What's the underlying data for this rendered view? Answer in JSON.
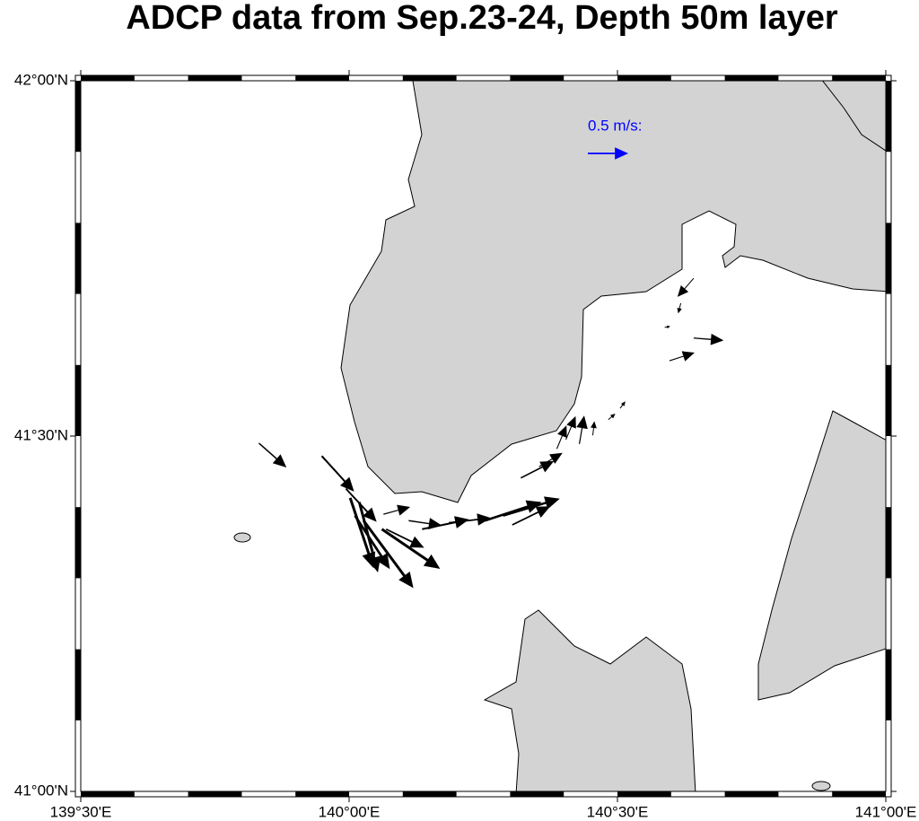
{
  "map": {
    "title": "ADCP data from Sep.23-24, Depth 50m layer",
    "xlim": [
      139.5,
      141
    ],
    "ylim": [
      41,
      42
    ],
    "xticks": [
      {
        "value": 139.5,
        "label": "139°30'E"
      },
      {
        "value": 140,
        "label": "140°00'E"
      },
      {
        "value": 140.5,
        "label": "140°30'E"
      },
      {
        "value": 141,
        "label": "141°00'E"
      }
    ],
    "yticks": [
      {
        "value": 41,
        "label": "41°00'N"
      },
      {
        "value": 41.5,
        "label": "41°30'N"
      },
      {
        "value": 42,
        "label": "42°00'N"
      }
    ],
    "legend": {
      "label": "0.5 m/s:",
      "speed": 0.5,
      "color": "#0000ff"
    },
    "vector_color": "#000000",
    "vectors": [
      {
        "lon": 139.832,
        "lat": 41.49,
        "u": 0.34,
        "v": -0.3
      },
      {
        "lon": 139.949,
        "lat": 41.472,
        "u": 0.4,
        "v": -0.44
      },
      {
        "lon": 139.994,
        "lat": 41.426,
        "u": 0.38,
        "v": -0.41
      },
      {
        "lon": 140.002,
        "lat": 41.413,
        "u": 0.29,
        "v": -0.87
      },
      {
        "lon": 140.019,
        "lat": 41.407,
        "u": 0.23,
        "v": -0.87
      },
      {
        "lon": 140.011,
        "lat": 41.388,
        "u": 0.43,
        "v": -0.66
      },
      {
        "lon": 140.027,
        "lat": 41.381,
        "u": 0.62,
        "v": -0.84
      },
      {
        "lon": 140.061,
        "lat": 41.369,
        "u": 0.72,
        "v": -0.49
      },
      {
        "lon": 140.069,
        "lat": 41.369,
        "u": 0.47,
        "v": -0.23
      },
      {
        "lon": 140.064,
        "lat": 41.39,
        "u": 0.33,
        "v": 0.09
      },
      {
        "lon": 140.111,
        "lat": 41.381,
        "u": 0.41,
        "v": -0.06
      },
      {
        "lon": 140.136,
        "lat": 41.369,
        "u": 0.58,
        "v": 0.12
      },
      {
        "lon": 140.186,
        "lat": 41.378,
        "u": 0.52,
        "v": 0.06
      },
      {
        "lon": 140.253,
        "lat": 41.381,
        "u": 0.7,
        "v": 0.23
      },
      {
        "lon": 140.287,
        "lat": 41.388,
        "u": 0.7,
        "v": 0.21
      },
      {
        "lon": 140.304,
        "lat": 41.375,
        "u": 0.47,
        "v": 0.23
      },
      {
        "lon": 140.32,
        "lat": 41.441,
        "u": 0.41,
        "v": 0.21
      },
      {
        "lon": 140.354,
        "lat": 41.457,
        "u": 0.29,
        "v": 0.17
      },
      {
        "lon": 140.387,
        "lat": 41.482,
        "u": 0.12,
        "v": 0.29
      },
      {
        "lon": 140.404,
        "lat": 41.495,
        "u": 0.12,
        "v": 0.29
      },
      {
        "lon": 140.429,
        "lat": 41.489,
        "u": 0.06,
        "v": 0.35
      },
      {
        "lon": 140.454,
        "lat": 41.501,
        "u": 0.02,
        "v": 0.17
      },
      {
        "lon": 140.483,
        "lat": 41.523,
        "u": 0.08,
        "v": 0.07
      },
      {
        "lon": 140.505,
        "lat": 41.539,
        "u": 0.06,
        "v": 0.08
      },
      {
        "lon": 140.597,
        "lat": 41.606,
        "u": 0.31,
        "v": 0.1
      },
      {
        "lon": 140.642,
        "lat": 41.638,
        "u": 0.37,
        "v": -0.03
      },
      {
        "lon": 140.642,
        "lat": 41.722,
        "u": -0.2,
        "v": -0.23
      },
      {
        "lon": 140.618,
        "lat": 41.687,
        "u": -0.03,
        "v": -0.12
      },
      {
        "lon": 140.588,
        "lat": 41.653,
        "u": 0.06,
        "v": 0.01
      }
    ]
  }
}
